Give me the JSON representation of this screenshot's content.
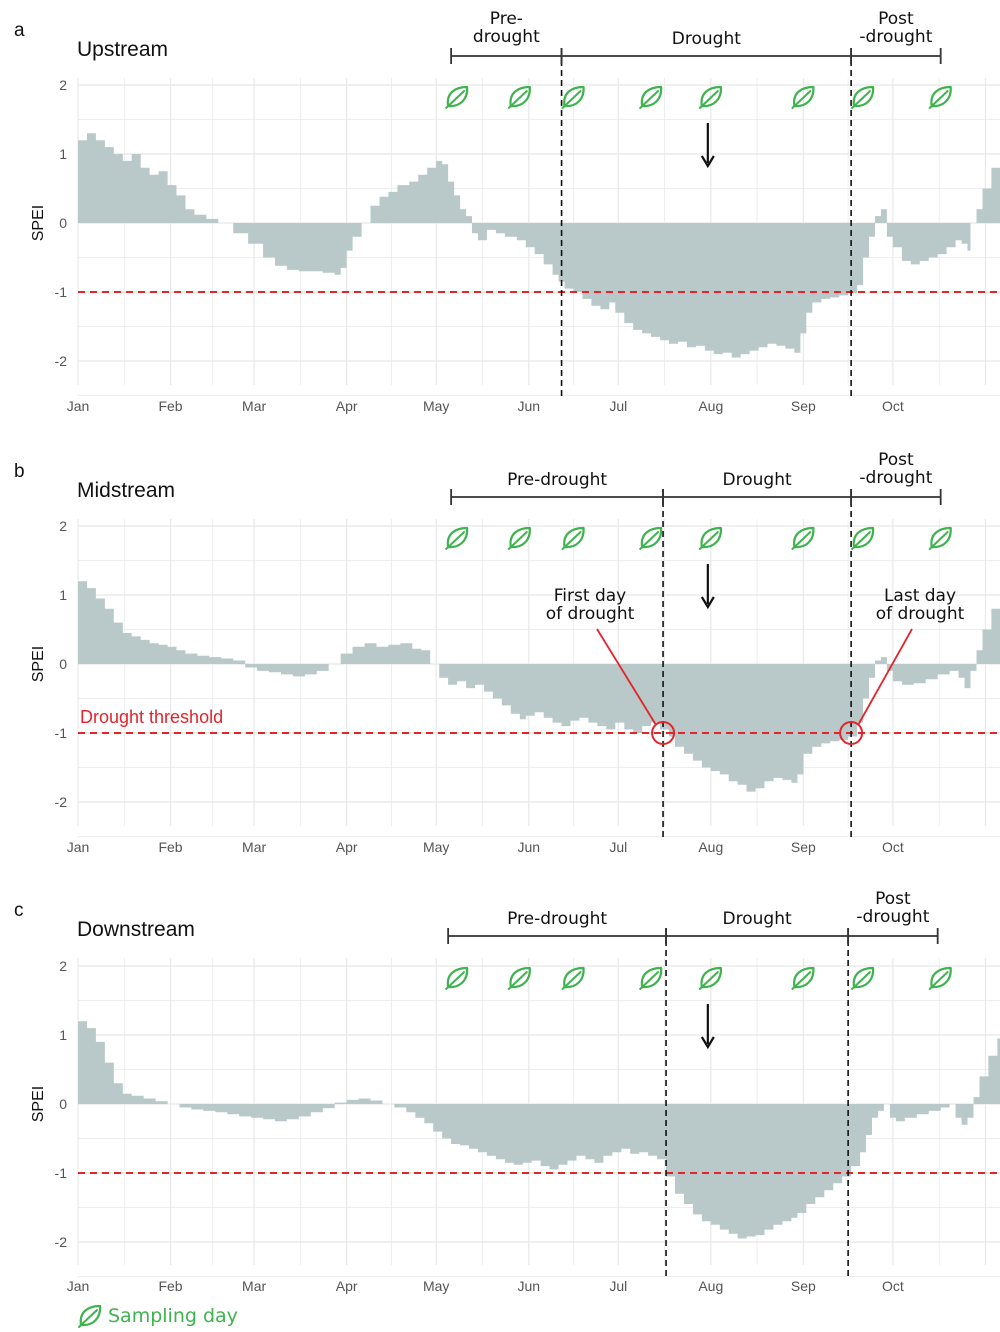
{
  "colors": {
    "area": "#b9c8c8",
    "threshold": "#e3242b",
    "leaf": "#3fb34f",
    "grid": "#e8e8e8",
    "text": "#111111"
  },
  "icons": {
    "sampling": "leaf-icon",
    "arrow": "arrow-down-icon"
  },
  "legend": {
    "label": "Sampling day"
  },
  "chart_data": [
    {
      "type": "area",
      "letter": "a",
      "title": "Upstream",
      "ylabel": "SPEI",
      "ylim": [
        -2.4,
        2.2
      ],
      "yticks": [
        2,
        1,
        0,
        -1,
        -2
      ],
      "ytick_labels": [
        "2",
        "1",
        "0",
        "-1",
        "-2"
      ],
      "months": [
        "Jan",
        "Feb",
        "Mar",
        "Apr",
        "May",
        "Jun",
        "Jul",
        "Aug",
        "Sep",
        "Oct"
      ],
      "threshold": -1,
      "threshold_label": "",
      "phases": [
        {
          "label": "Pre-\ndrought",
          "start": 125,
          "end": 162
        },
        {
          "label": "Drought",
          "start": 162,
          "end": 259
        },
        {
          "label": "Post\n-drought",
          "start": 259,
          "end": 289
        }
      ],
      "drought_bounds": [
        162,
        259
      ],
      "sampling_days": [
        127,
        148,
        166,
        192,
        212,
        243,
        263,
        289
      ],
      "arrow_day": 211,
      "annotations": [],
      "spei": [
        [
          0,
          1.2
        ],
        [
          3,
          1.3
        ],
        [
          6,
          1.2
        ],
        [
          9,
          1.1
        ],
        [
          12,
          1.0
        ],
        [
          15,
          0.9
        ],
        [
          18,
          1.0
        ],
        [
          21,
          0.8
        ],
        [
          24,
          0.7
        ],
        [
          27,
          0.75
        ],
        [
          30,
          0.55
        ],
        [
          33,
          0.4
        ],
        [
          36,
          0.2
        ],
        [
          39,
          0.12
        ],
        [
          43,
          0.06
        ],
        [
          47,
          0.0
        ],
        [
          52,
          -0.15
        ],
        [
          57,
          -0.3
        ],
        [
          62,
          -0.5
        ],
        [
          66,
          -0.62
        ],
        [
          70,
          -0.68
        ],
        [
          74,
          -0.7
        ],
        [
          78,
          -0.7
        ],
        [
          82,
          -0.72
        ],
        [
          86,
          -0.75
        ],
        [
          88,
          -0.65
        ],
        [
          90,
          -0.4
        ],
        [
          92,
          -0.2
        ],
        [
          95,
          0.0
        ],
        [
          98,
          0.25
        ],
        [
          101,
          0.38
        ],
        [
          104,
          0.45
        ],
        [
          107,
          0.55
        ],
        [
          111,
          0.6
        ],
        [
          114,
          0.7
        ],
        [
          117,
          0.8
        ],
        [
          120,
          0.9
        ],
        [
          122,
          0.85
        ],
        [
          124,
          0.6
        ],
        [
          126,
          0.4
        ],
        [
          128,
          0.2
        ],
        [
          130,
          0.1
        ],
        [
          132,
          -0.15
        ],
        [
          134,
          -0.25
        ],
        [
          137,
          -0.1
        ],
        [
          140,
          -0.15
        ],
        [
          143,
          -0.2
        ],
        [
          147,
          -0.25
        ],
        [
          150,
          -0.35
        ],
        [
          153,
          -0.45
        ],
        [
          156,
          -0.6
        ],
        [
          159,
          -0.75
        ],
        [
          161,
          -0.85
        ],
        [
          163,
          -0.95
        ],
        [
          166,
          -1.0
        ],
        [
          169,
          -1.1
        ],
        [
          172,
          -1.2
        ],
        [
          175,
          -1.25
        ],
        [
          178,
          -1.15
        ],
        [
          180,
          -1.3
        ],
        [
          183,
          -1.45
        ],
        [
          186,
          -1.55
        ],
        [
          189,
          -1.6
        ],
        [
          192,
          -1.65
        ],
        [
          195,
          -1.7
        ],
        [
          198,
          -1.75
        ],
        [
          201,
          -1.72
        ],
        [
          204,
          -1.8
        ],
        [
          207,
          -1.78
        ],
        [
          210,
          -1.85
        ],
        [
          213,
          -1.9
        ],
        [
          216,
          -1.88
        ],
        [
          219,
          -1.95
        ],
        [
          222,
          -1.9
        ],
        [
          225,
          -1.85
        ],
        [
          228,
          -1.8
        ],
        [
          231,
          -1.75
        ],
        [
          234,
          -1.78
        ],
        [
          237,
          -1.82
        ],
        [
          240,
          -1.88
        ],
        [
          242,
          -1.6
        ],
        [
          244,
          -1.3
        ],
        [
          246,
          -1.15
        ],
        [
          249,
          -1.1
        ],
        [
          252,
          -1.08
        ],
        [
          255,
          -1.05
        ],
        [
          258,
          -1.02
        ],
        [
          261,
          -0.9
        ],
        [
          263,
          -0.5
        ],
        [
          265,
          -0.2
        ],
        [
          267,
          0.1
        ],
        [
          269,
          0.2
        ],
        [
          271,
          -0.2
        ],
        [
          273,
          -0.35
        ],
        [
          276,
          -0.55
        ],
        [
          279,
          -0.6
        ],
        [
          282,
          -0.55
        ],
        [
          285,
          -0.5
        ],
        [
          288,
          -0.45
        ],
        [
          291,
          -0.35
        ],
        [
          294,
          -0.25
        ],
        [
          296,
          -0.3
        ],
        [
          298,
          -0.4
        ],
        [
          299,
          0.0
        ],
        [
          301,
          0.2
        ],
        [
          303,
          0.5
        ],
        [
          306,
          0.8
        ],
        [
          309,
          1.0
        ],
        [
          312,
          1.1
        ]
      ]
    },
    {
      "type": "area",
      "letter": "b",
      "title": "Midstream",
      "ylabel": "SPEI",
      "ylim": [
        -2.4,
        2.2
      ],
      "yticks": [
        2,
        1,
        0,
        -1,
        -2
      ],
      "ytick_labels": [
        "2",
        "1",
        "0",
        "-1",
        "-2"
      ],
      "months": [
        "Jan",
        "Feb",
        "Mar",
        "Apr",
        "May",
        "Jun",
        "Jul",
        "Aug",
        "Sep",
        "Oct"
      ],
      "threshold": -1,
      "threshold_label": "Drought threshold",
      "phases": [
        {
          "label": "Pre-drought",
          "start": 125,
          "end": 196
        },
        {
          "label": "Drought",
          "start": 196,
          "end": 259
        },
        {
          "label": "Post\n-drought",
          "start": 259,
          "end": 289
        }
      ],
      "drought_bounds": [
        196,
        259
      ],
      "sampling_days": [
        127,
        148,
        166,
        192,
        212,
        243,
        263,
        289
      ],
      "arrow_day": 211,
      "annotations": [
        {
          "text": "First day\nof drought",
          "day": 196,
          "value": -1.0
        },
        {
          "text": "Last day\nof drought",
          "day": 259,
          "value": -1.0
        }
      ],
      "spei": [
        [
          0,
          1.2
        ],
        [
          3,
          1.1
        ],
        [
          6,
          0.95
        ],
        [
          9,
          0.8
        ],
        [
          12,
          0.6
        ],
        [
          15,
          0.45
        ],
        [
          18,
          0.4
        ],
        [
          21,
          0.35
        ],
        [
          24,
          0.3
        ],
        [
          27,
          0.28
        ],
        [
          30,
          0.25
        ],
        [
          33,
          0.2
        ],
        [
          36,
          0.15
        ],
        [
          40,
          0.12
        ],
        [
          44,
          0.1
        ],
        [
          48,
          0.08
        ],
        [
          52,
          0.05
        ],
        [
          56,
          -0.05
        ],
        [
          60,
          -0.1
        ],
        [
          64,
          -0.12
        ],
        [
          68,
          -0.15
        ],
        [
          72,
          -0.18
        ],
        [
          76,
          -0.15
        ],
        [
          80,
          -0.1
        ],
        [
          84,
          0.0
        ],
        [
          88,
          0.15
        ],
        [
          92,
          0.25
        ],
        [
          96,
          0.3
        ],
        [
          100,
          0.25
        ],
        [
          104,
          0.28
        ],
        [
          108,
          0.3
        ],
        [
          112,
          0.22
        ],
        [
          115,
          0.2
        ],
        [
          118,
          0.0
        ],
        [
          121,
          -0.2
        ],
        [
          124,
          -0.3
        ],
        [
          127,
          -0.25
        ],
        [
          130,
          -0.35
        ],
        [
          133,
          -0.3
        ],
        [
          136,
          -0.4
        ],
        [
          139,
          -0.5
        ],
        [
          142,
          -0.6
        ],
        [
          145,
          -0.72
        ],
        [
          148,
          -0.8
        ],
        [
          150,
          -0.75
        ],
        [
          153,
          -0.7
        ],
        [
          156,
          -0.78
        ],
        [
          159,
          -0.85
        ],
        [
          162,
          -0.9
        ],
        [
          165,
          -0.82
        ],
        [
          168,
          -0.78
        ],
        [
          171,
          -0.85
        ],
        [
          174,
          -0.9
        ],
        [
          177,
          -0.95
        ],
        [
          180,
          -0.85
        ],
        [
          183,
          -0.95
        ],
        [
          186,
          -1.0
        ],
        [
          189,
          -0.9
        ],
        [
          192,
          -0.85
        ],
        [
          195,
          -0.95
        ],
        [
          198,
          -1.05
        ],
        [
          200,
          -1.2
        ],
        [
          203,
          -1.3
        ],
        [
          206,
          -1.4
        ],
        [
          209,
          -1.5
        ],
        [
          212,
          -1.55
        ],
        [
          215,
          -1.6
        ],
        [
          218,
          -1.7
        ],
        [
          221,
          -1.75
        ],
        [
          224,
          -1.85
        ],
        [
          227,
          -1.8
        ],
        [
          230,
          -1.7
        ],
        [
          233,
          -1.65
        ],
        [
          236,
          -1.68
        ],
        [
          239,
          -1.72
        ],
        [
          241,
          -1.6
        ],
        [
          243,
          -1.3
        ],
        [
          246,
          -1.2
        ],
        [
          249,
          -1.15
        ],
        [
          252,
          -1.12
        ],
        [
          255,
          -1.1
        ],
        [
          258,
          -1.05
        ],
        [
          261,
          -0.85
        ],
        [
          263,
          -0.5
        ],
        [
          265,
          -0.2
        ],
        [
          267,
          0.05
        ],
        [
          269,
          0.1
        ],
        [
          271,
          -0.1
        ],
        [
          273,
          -0.25
        ],
        [
          276,
          -0.3
        ],
        [
          280,
          -0.28
        ],
        [
          284,
          -0.22
        ],
        [
          288,
          -0.15
        ],
        [
          292,
          -0.1
        ],
        [
          295,
          -0.2
        ],
        [
          297,
          -0.35
        ],
        [
          299,
          -0.1
        ],
        [
          301,
          0.2
        ],
        [
          303,
          0.5
        ],
        [
          306,
          0.8
        ],
        [
          309,
          1.05
        ],
        [
          312,
          1.15
        ]
      ]
    },
    {
      "type": "area",
      "letter": "c",
      "title": "Downstream",
      "ylabel": "SPEI",
      "ylim": [
        -2.4,
        2.2
      ],
      "yticks": [
        2,
        1,
        0,
        -1,
        -2
      ],
      "ytick_labels": [
        "2",
        "1",
        "0",
        "-1",
        "-2"
      ],
      "months": [
        "Jan",
        "Feb",
        "Mar",
        "Apr",
        "May",
        "Jun",
        "Jul",
        "Aug",
        "Sep",
        "Oct"
      ],
      "threshold": -1,
      "threshold_label": "",
      "phases": [
        {
          "label": "Pre-drought",
          "start": 124,
          "end": 197
        },
        {
          "label": "Drought",
          "start": 197,
          "end": 258
        },
        {
          "label": "Post\n-drought",
          "start": 258,
          "end": 288
        }
      ],
      "drought_bounds": [
        197,
        258
      ],
      "sampling_days": [
        127,
        148,
        166,
        192,
        212,
        243,
        263,
        289
      ],
      "arrow_day": 211,
      "annotations": [],
      "spei": [
        [
          0,
          1.2
        ],
        [
          3,
          1.1
        ],
        [
          6,
          0.9
        ],
        [
          9,
          0.6
        ],
        [
          12,
          0.3
        ],
        [
          15,
          0.15
        ],
        [
          18,
          0.12
        ],
        [
          22,
          0.08
        ],
        [
          26,
          0.04
        ],
        [
          30,
          0.0
        ],
        [
          34,
          -0.05
        ],
        [
          38,
          -0.08
        ],
        [
          42,
          -0.1
        ],
        [
          46,
          -0.12
        ],
        [
          50,
          -0.15
        ],
        [
          54,
          -0.18
        ],
        [
          58,
          -0.2
        ],
        [
          62,
          -0.22
        ],
        [
          66,
          -0.25
        ],
        [
          70,
          -0.22
        ],
        [
          74,
          -0.18
        ],
        [
          78,
          -0.12
        ],
        [
          82,
          -0.06
        ],
        [
          86,
          0.02
        ],
        [
          90,
          0.06
        ],
        [
          94,
          0.08
        ],
        [
          98,
          0.05
        ],
        [
          102,
          0.0
        ],
        [
          106,
          -0.05
        ],
        [
          110,
          -0.12
        ],
        [
          113,
          -0.2
        ],
        [
          116,
          -0.28
        ],
        [
          119,
          -0.4
        ],
        [
          122,
          -0.5
        ],
        [
          125,
          -0.58
        ],
        [
          128,
          -0.6
        ],
        [
          131,
          -0.65
        ],
        [
          134,
          -0.7
        ],
        [
          137,
          -0.75
        ],
        [
          140,
          -0.8
        ],
        [
          143,
          -0.85
        ],
        [
          146,
          -0.88
        ],
        [
          149,
          -0.85
        ],
        [
          152,
          -0.82
        ],
        [
          155,
          -0.9
        ],
        [
          158,
          -0.95
        ],
        [
          161,
          -0.88
        ],
        [
          164,
          -0.82
        ],
        [
          167,
          -0.75
        ],
        [
          170,
          -0.8
        ],
        [
          173,
          -0.85
        ],
        [
          176,
          -0.75
        ],
        [
          179,
          -0.7
        ],
        [
          182,
          -0.65
        ],
        [
          185,
          -0.72
        ],
        [
          188,
          -0.7
        ],
        [
          191,
          -0.75
        ],
        [
          194,
          -0.8
        ],
        [
          197,
          -1.05
        ],
        [
          200,
          -1.3
        ],
        [
          203,
          -1.45
        ],
        [
          206,
          -1.6
        ],
        [
          209,
          -1.7
        ],
        [
          212,
          -1.75
        ],
        [
          215,
          -1.82
        ],
        [
          218,
          -1.88
        ],
        [
          221,
          -1.95
        ],
        [
          224,
          -1.92
        ],
        [
          227,
          -1.9
        ],
        [
          230,
          -1.82
        ],
        [
          233,
          -1.75
        ],
        [
          236,
          -1.7
        ],
        [
          239,
          -1.65
        ],
        [
          241,
          -1.58
        ],
        [
          244,
          -1.45
        ],
        [
          247,
          -1.35
        ],
        [
          250,
          -1.25
        ],
        [
          253,
          -1.15
        ],
        [
          256,
          -1.05
        ],
        [
          259,
          -0.9
        ],
        [
          262,
          -0.7
        ],
        [
          264,
          -0.45
        ],
        [
          266,
          -0.2
        ],
        [
          268,
          -0.1
        ],
        [
          270,
          0.0
        ],
        [
          272,
          -0.2
        ],
        [
          274,
          -0.25
        ],
        [
          277,
          -0.2
        ],
        [
          281,
          -0.15
        ],
        [
          285,
          -0.1
        ],
        [
          289,
          -0.05
        ],
        [
          292,
          0.0
        ],
        [
          294,
          -0.2
        ],
        [
          296,
          -0.3
        ],
        [
          298,
          -0.2
        ],
        [
          300,
          0.1
        ],
        [
          302,
          0.4
        ],
        [
          305,
          0.7
        ],
        [
          308,
          0.95
        ],
        [
          312,
          1.05
        ]
      ]
    }
  ]
}
